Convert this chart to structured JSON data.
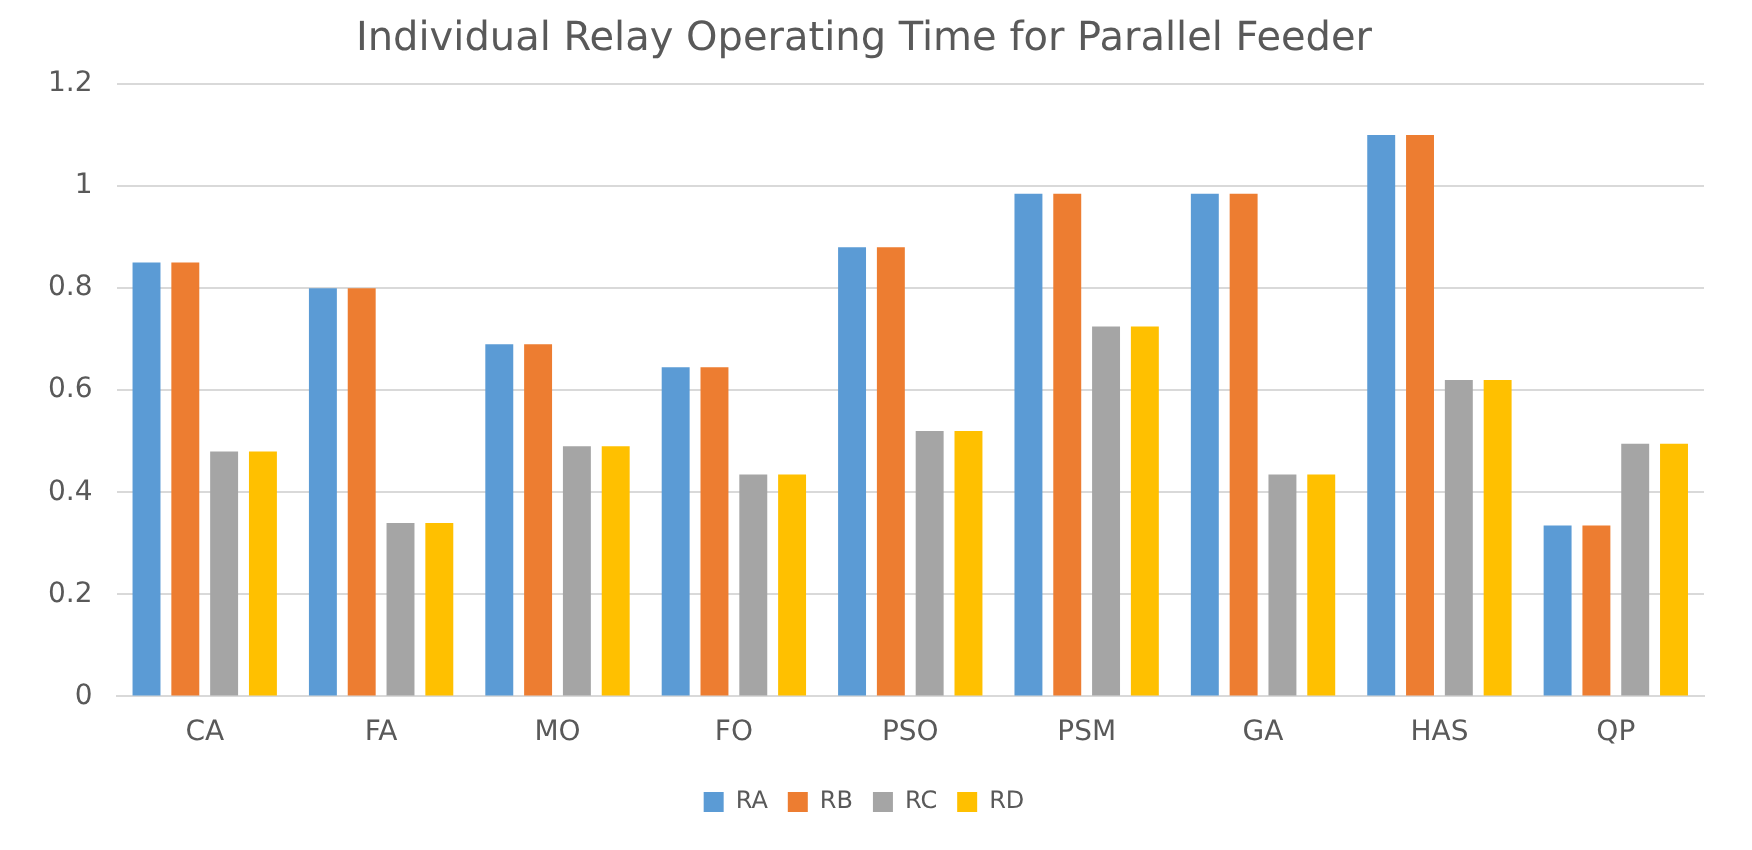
{
  "chart_data": {
    "type": "bar",
    "title": "Individual Relay Operating Time for Parallel Feeder",
    "categories": [
      "CA",
      "FA",
      "MO",
      "FO",
      "PSO",
      "PSM",
      "GA",
      "HAS",
      "QP"
    ],
    "series": [
      {
        "name": "RA",
        "color": "#5b9bd5",
        "values": [
          0.85,
          0.8,
          0.69,
          0.645,
          0.88,
          0.985,
          0.985,
          1.1,
          0.335
        ]
      },
      {
        "name": "RB",
        "color": "#ed7d31",
        "values": [
          0.85,
          0.8,
          0.69,
          0.645,
          0.88,
          0.985,
          0.985,
          1.1,
          0.335
        ]
      },
      {
        "name": "RC",
        "color": "#a5a5a5",
        "values": [
          0.48,
          0.34,
          0.49,
          0.435,
          0.52,
          0.725,
          0.435,
          0.62,
          0.495
        ]
      },
      {
        "name": "RD",
        "color": "#ffc000",
        "values": [
          0.48,
          0.34,
          0.49,
          0.435,
          0.52,
          0.725,
          0.435,
          0.62,
          0.495
        ]
      }
    ],
    "ylim": [
      0,
      1.2
    ],
    "yticks": [
      0,
      0.2,
      0.4,
      0.6,
      0.8,
      1,
      1.2
    ],
    "grid": "y",
    "legend": "bottom"
  }
}
